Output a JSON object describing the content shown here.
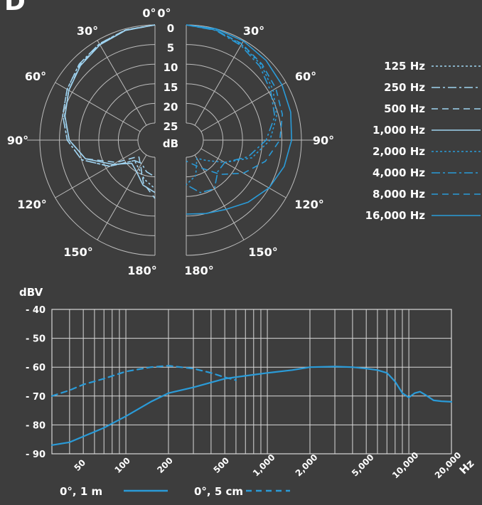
{
  "panel_letter": "D",
  "colors": {
    "background": "#3d3d3d",
    "grid": "#bdbdbd",
    "text": "#ffffff",
    "light_blue": "#9fd3f0",
    "dark_blue": "#2a9bd8"
  },
  "chart_data": [
    {
      "type": "polar",
      "angle_labels_left": [
        "0°",
        "30°",
        "60°",
        "90°",
        "120°",
        "150°",
        "180°"
      ],
      "angle_labels_right": [
        "0°",
        "30°",
        "60°",
        "90°",
        "120°",
        "150°",
        "180°"
      ],
      "radial_tick_labels": [
        "0",
        "5",
        "10",
        "15",
        "20",
        "25"
      ],
      "radial_unit": "dB",
      "radial_range": [
        0,
        25
      ],
      "legend_placement": "right",
      "legend": [
        {
          "name": "125 Hz",
          "color": "light_blue",
          "dash": "dotted"
        },
        {
          "name": "250 Hz",
          "color": "light_blue",
          "dash": "dashdot"
        },
        {
          "name": "500 Hz",
          "color": "light_blue",
          "dash": "dashed"
        },
        {
          "name": "1,000 Hz",
          "color": "light_blue",
          "dash": "solid"
        },
        {
          "name": "2,000 Hz",
          "color": "dark_blue",
          "dash": "dotted"
        },
        {
          "name": "4,000 Hz",
          "color": "dark_blue",
          "dash": "dashdot"
        },
        {
          "name": "8,000 Hz",
          "color": "dark_blue",
          "dash": "dashed"
        },
        {
          "name": "16,000 Hz",
          "color": "dark_blue",
          "dash": "solid"
        }
      ],
      "angles": [
        0,
        15,
        30,
        45,
        60,
        75,
        90,
        105,
        120,
        135,
        150,
        165,
        180
      ],
      "series": [
        {
          "name": "125 Hz",
          "side": "left",
          "values": [
            0,
            0.3,
            1,
            2,
            3.5,
            5,
            7,
            10,
            16,
            22,
            21,
            19,
            17
          ]
        },
        {
          "name": "250 Hz",
          "side": "left",
          "values": [
            0,
            0.3,
            1,
            2,
            3.5,
            5,
            7,
            10,
            16,
            22,
            22.5,
            21,
            20
          ]
        },
        {
          "name": "500 Hz",
          "side": "left",
          "values": [
            0,
            0.4,
            1.2,
            2.3,
            4,
            5.5,
            7.5,
            11,
            18,
            23.5,
            22,
            18,
            14.5
          ]
        },
        {
          "name": "1,000 Hz",
          "side": "left",
          "values": [
            0,
            0.4,
            1.3,
            2.5,
            4,
            5.6,
            7.5,
            11,
            17,
            21,
            20,
            17.5,
            16
          ]
        },
        {
          "name": "2,000 Hz",
          "side": "right",
          "values": [
            0,
            0.3,
            1.2,
            2.3,
            3.8,
            5.5,
            8,
            12,
            18,
            22,
            24,
            20,
            18
          ]
        },
        {
          "name": "4,000 Hz",
          "side": "right",
          "values": [
            0,
            0.4,
            1.5,
            2.8,
            4.5,
            6,
            9,
            13,
            18,
            18,
            15,
            15.5,
            18
          ]
        },
        {
          "name": "8,000 Hz",
          "side": "right",
          "values": [
            0,
            0.3,
            1,
            2,
            3,
            4,
            5.5,
            8.5,
            12.5,
            17,
            21,
            23,
            24
          ]
        },
        {
          "name": "16,000 Hz",
          "side": "right",
          "values": [
            0,
            0,
            0.2,
            0.6,
            1.2,
            1.8,
            2.5,
            3.5,
            5,
            7,
            9,
            10,
            10.5
          ]
        }
      ]
    },
    {
      "type": "line",
      "ylabel": "dBV",
      "xlabel": "Hz",
      "x_scale": "log",
      "xlim": [
        30,
        20000
      ],
      "ylim": [
        -90,
        -40
      ],
      "grid": true,
      "y_ticks": [
        -40,
        -50,
        -60,
        -70,
        -80,
        -90
      ],
      "y_tick_labels": [
        "- 40",
        "- 50",
        "- 60",
        "- 70",
        "- 80",
        "- 90"
      ],
      "x_ticks": [
        50,
        100,
        200,
        500,
        1000,
        2000,
        5000,
        10000,
        20000
      ],
      "x_tick_labels": [
        "50",
        "100",
        "200",
        "500",
        "1,000",
        "2,000",
        "5,000",
        "10,000",
        "20,000"
      ],
      "legend_placement": "bottom",
      "series": [
        {
          "name": "0°, 1 m",
          "style": "solid",
          "x": [
            30,
            40,
            50,
            70,
            100,
            150,
            200,
            300,
            500,
            700,
            1000,
            1500,
            2000,
            3000,
            4000,
            5000,
            6000,
            7000,
            8000,
            9000,
            10000,
            11000,
            12000,
            13000,
            15000,
            17000,
            20000
          ],
          "y": [
            -87,
            -86,
            -84,
            -81,
            -77,
            -72,
            -69,
            -67,
            -64,
            -63,
            -62,
            -61,
            -60,
            -59.8,
            -60,
            -60.5,
            -61,
            -62,
            -65,
            -69,
            -70.5,
            -69,
            -68.5,
            -69.5,
            -71.5,
            -71.8,
            -72
          ]
        },
        {
          "name": "0°, 5 cm",
          "style": "dashed",
          "x": [
            30,
            40,
            50,
            70,
            100,
            150,
            200,
            300,
            400,
            500,
            600
          ],
          "y": [
            -70,
            -68,
            -66,
            -64,
            -61.5,
            -60,
            -59.5,
            -60.5,
            -62,
            -63.5,
            -64.5
          ]
        }
      ]
    }
  ]
}
